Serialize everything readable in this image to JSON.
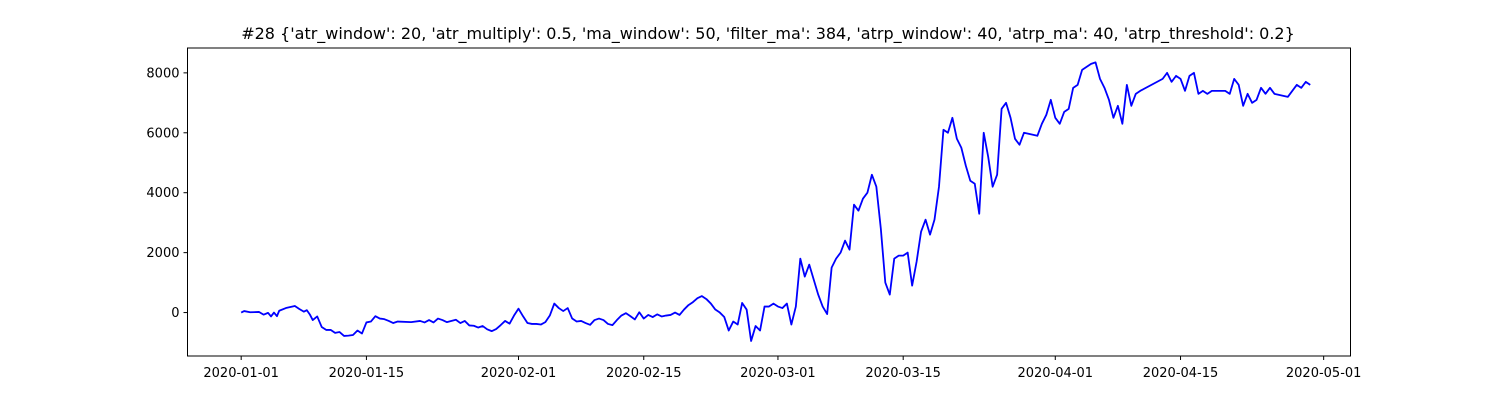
{
  "chart_data": {
    "type": "line",
    "title": "#28 {'atr_window': 20, 'atr_multiply': 0.5, 'ma_window': 50, 'filter_ma': 384, 'atrp_window': 40, 'atrp_ma': 40, 'atrp_threshold': 0.2}",
    "xlabel": "",
    "ylabel": "",
    "xlim": [
      "2019-12-26",
      "2020-05-04"
    ],
    "ylim": [
      -1450,
      8830
    ],
    "x_ticks": [
      "2020-01-01",
      "2020-01-15",
      "2020-02-01",
      "2020-02-15",
      "2020-03-01",
      "2020-03-15",
      "2020-04-01",
      "2020-04-15",
      "2020-05-01"
    ],
    "y_ticks": [
      0,
      2000,
      4000,
      6000,
      8000
    ],
    "grid": false,
    "series": [
      {
        "name": "",
        "color": "#0000ff",
        "points": [
          [
            "2020-01-01T00:00",
            0
          ],
          [
            "2020-01-01T08:00",
            50
          ],
          [
            "2020-01-02",
            10
          ],
          [
            "2020-01-03",
            20
          ],
          [
            "2020-01-03T12:00",
            -70
          ],
          [
            "2020-01-04",
            -10
          ],
          [
            "2020-01-04T08:00",
            -130
          ],
          [
            "2020-01-04T16:00",
            0
          ],
          [
            "2020-01-05T00:00",
            -120
          ],
          [
            "2020-01-05T06:00",
            60
          ],
          [
            "2020-01-06",
            150
          ],
          [
            "2020-01-07",
            220
          ],
          [
            "2020-01-07T12:00",
            120
          ],
          [
            "2020-01-08",
            30
          ],
          [
            "2020-01-08T08:00",
            80
          ],
          [
            "2020-01-08T16:00",
            -60
          ],
          [
            "2020-01-09",
            -250
          ],
          [
            "2020-01-09T12:00",
            -130
          ],
          [
            "2020-01-10",
            -480
          ],
          [
            "2020-01-10T12:00",
            -580
          ],
          [
            "2020-01-11",
            -580
          ],
          [
            "2020-01-11T12:00",
            -680
          ],
          [
            "2020-01-12",
            -650
          ],
          [
            "2020-01-12T12:00",
            -780
          ],
          [
            "2020-01-13",
            -770
          ],
          [
            "2020-01-13T12:00",
            -750
          ],
          [
            "2020-01-14",
            -600
          ],
          [
            "2020-01-14T12:00",
            -700
          ],
          [
            "2020-01-15",
            -330
          ],
          [
            "2020-01-15T12:00",
            -300
          ],
          [
            "2020-01-16",
            -120
          ],
          [
            "2020-01-16T12:00",
            -200
          ],
          [
            "2020-01-17",
            -220
          ],
          [
            "2020-01-17T12:00",
            -280
          ],
          [
            "2020-01-18",
            -350
          ],
          [
            "2020-01-18T12:00",
            -300
          ],
          [
            "2020-01-20",
            -320
          ],
          [
            "2020-01-21",
            -280
          ],
          [
            "2020-01-21T12:00",
            -330
          ],
          [
            "2020-01-22",
            -250
          ],
          [
            "2020-01-22T12:00",
            -330
          ],
          [
            "2020-01-23",
            -200
          ],
          [
            "2020-01-23T12:00",
            -250
          ],
          [
            "2020-01-24",
            -320
          ],
          [
            "2020-01-25",
            -240
          ],
          [
            "2020-01-25T12:00",
            -350
          ],
          [
            "2020-01-26",
            -280
          ],
          [
            "2020-01-26T12:00",
            -430
          ],
          [
            "2020-01-27",
            -440
          ],
          [
            "2020-01-27T12:00",
            -500
          ],
          [
            "2020-01-28",
            -450
          ],
          [
            "2020-01-28T12:00",
            -560
          ],
          [
            "2020-01-29",
            -620
          ],
          [
            "2020-01-29T12:00",
            -550
          ],
          [
            "2020-01-30",
            -420
          ],
          [
            "2020-01-30T12:00",
            -280
          ],
          [
            "2020-01-31",
            -370
          ],
          [
            "2020-01-31T12:00",
            -100
          ],
          [
            "2020-02-01",
            130
          ],
          [
            "2020-02-01T12:00",
            -120
          ],
          [
            "2020-02-02",
            -350
          ],
          [
            "2020-02-02T12:00",
            -380
          ],
          [
            "2020-02-03",
            -380
          ],
          [
            "2020-02-03T12:00",
            -400
          ],
          [
            "2020-02-04",
            -320
          ],
          [
            "2020-02-04T12:00",
            -100
          ],
          [
            "2020-02-05",
            300
          ],
          [
            "2020-02-05T12:00",
            150
          ],
          [
            "2020-02-06",
            50
          ],
          [
            "2020-02-06T12:00",
            150
          ],
          [
            "2020-02-07",
            -200
          ],
          [
            "2020-02-07T12:00",
            -300
          ],
          [
            "2020-02-08",
            -280
          ],
          [
            "2020-02-08T12:00",
            -350
          ],
          [
            "2020-02-09",
            -410
          ],
          [
            "2020-02-09T12:00",
            -250
          ],
          [
            "2020-02-10",
            -200
          ],
          [
            "2020-02-10T12:00",
            -250
          ],
          [
            "2020-02-11",
            -380
          ],
          [
            "2020-02-11T12:00",
            -420
          ],
          [
            "2020-02-12",
            -250
          ],
          [
            "2020-02-12T12:00",
            -100
          ],
          [
            "2020-02-13",
            -20
          ],
          [
            "2020-02-13T12:00",
            -120
          ],
          [
            "2020-02-14",
            -230
          ],
          [
            "2020-02-14T12:00",
            10
          ],
          [
            "2020-02-15",
            -200
          ],
          [
            "2020-02-15T12:00",
            -80
          ],
          [
            "2020-02-16",
            -150
          ],
          [
            "2020-02-16T12:00",
            -60
          ],
          [
            "2020-02-17",
            -130
          ],
          [
            "2020-02-17T12:00",
            -100
          ],
          [
            "2020-02-18",
            -80
          ],
          [
            "2020-02-18T12:00",
            0
          ],
          [
            "2020-02-19",
            -80
          ],
          [
            "2020-02-19T12:00",
            100
          ],
          [
            "2020-02-20",
            250
          ],
          [
            "2020-02-20T12:00",
            350
          ],
          [
            "2020-02-21",
            480
          ],
          [
            "2020-02-21T12:00",
            550
          ],
          [
            "2020-02-22",
            450
          ],
          [
            "2020-02-22T12:00",
            300
          ],
          [
            "2020-02-23",
            100
          ],
          [
            "2020-02-23T12:00",
            0
          ],
          [
            "2020-02-24",
            -150
          ],
          [
            "2020-02-24T12:00",
            -600
          ],
          [
            "2020-02-25",
            -300
          ],
          [
            "2020-02-25T12:00",
            -400
          ],
          [
            "2020-02-26",
            320
          ],
          [
            "2020-02-26T12:00",
            100
          ],
          [
            "2020-02-27",
            -950
          ],
          [
            "2020-02-27T12:00",
            -450
          ],
          [
            "2020-02-28",
            -600
          ],
          [
            "2020-02-28T12:00",
            200
          ],
          [
            "2020-02-29",
            200
          ],
          [
            "2020-02-29T12:00",
            300
          ],
          [
            "2020-03-01",
            200
          ],
          [
            "2020-03-01T12:00",
            150
          ],
          [
            "2020-03-02",
            300
          ],
          [
            "2020-03-02T12:00",
            -400
          ],
          [
            "2020-03-03",
            200
          ],
          [
            "2020-03-03T12:00",
            1800
          ],
          [
            "2020-03-04",
            1200
          ],
          [
            "2020-03-04T12:00",
            1600
          ],
          [
            "2020-03-05",
            1100
          ],
          [
            "2020-03-05T12:00",
            600
          ],
          [
            "2020-03-06",
            200
          ],
          [
            "2020-03-06T12:00",
            -50
          ],
          [
            "2020-03-07",
            1500
          ],
          [
            "2020-03-07T12:00",
            1800
          ],
          [
            "2020-03-08",
            2000
          ],
          [
            "2020-03-08T12:00",
            2400
          ],
          [
            "2020-03-09",
            2100
          ],
          [
            "2020-03-09T12:00",
            3600
          ],
          [
            "2020-03-10",
            3400
          ],
          [
            "2020-03-10T12:00",
            3800
          ],
          [
            "2020-03-11",
            4000
          ],
          [
            "2020-03-11T12:00",
            4600
          ],
          [
            "2020-03-12",
            4200
          ],
          [
            "2020-03-12T12:00",
            2800
          ],
          [
            "2020-03-13",
            1000
          ],
          [
            "2020-03-13T12:00",
            600
          ],
          [
            "2020-03-14",
            1800
          ],
          [
            "2020-03-14T12:00",
            1900
          ],
          [
            "2020-03-15",
            1900
          ],
          [
            "2020-03-15T12:00",
            2000
          ],
          [
            "2020-03-16",
            900
          ],
          [
            "2020-03-16T12:00",
            1700
          ],
          [
            "2020-03-17",
            2700
          ],
          [
            "2020-03-17T12:00",
            3100
          ],
          [
            "2020-03-18",
            2600
          ],
          [
            "2020-03-18T12:00",
            3100
          ],
          [
            "2020-03-19",
            4200
          ],
          [
            "2020-03-19T12:00",
            6100
          ],
          [
            "2020-03-20",
            6000
          ],
          [
            "2020-03-20T12:00",
            6500
          ],
          [
            "2020-03-21",
            5800
          ],
          [
            "2020-03-21T12:00",
            5500
          ],
          [
            "2020-03-22",
            4900
          ],
          [
            "2020-03-22T12:00",
            4400
          ],
          [
            "2020-03-23",
            4300
          ],
          [
            "2020-03-23T12:00",
            3300
          ],
          [
            "2020-03-24",
            6000
          ],
          [
            "2020-03-24T12:00",
            5200
          ],
          [
            "2020-03-25",
            4200
          ],
          [
            "2020-03-25T12:00",
            4600
          ],
          [
            "2020-03-26",
            6800
          ],
          [
            "2020-03-26T12:00",
            7000
          ],
          [
            "2020-03-27",
            6500
          ],
          [
            "2020-03-27T12:00",
            5800
          ],
          [
            "2020-03-28",
            5600
          ],
          [
            "2020-03-28T12:00",
            6000
          ],
          [
            "2020-03-30",
            5900
          ],
          [
            "2020-03-30T12:00",
            6300
          ],
          [
            "2020-03-31",
            6600
          ],
          [
            "2020-03-31T12:00",
            7100
          ],
          [
            "2020-04-01",
            6500
          ],
          [
            "2020-04-01T12:00",
            6300
          ],
          [
            "2020-04-02",
            6700
          ],
          [
            "2020-04-02T12:00",
            6800
          ],
          [
            "2020-04-03",
            7500
          ],
          [
            "2020-04-03T12:00",
            7600
          ],
          [
            "2020-04-04",
            8100
          ],
          [
            "2020-04-04T12:00",
            8200
          ],
          [
            "2020-04-05",
            8300
          ],
          [
            "2020-04-05T12:00",
            8350
          ],
          [
            "2020-04-06",
            7800
          ],
          [
            "2020-04-06T12:00",
            7500
          ],
          [
            "2020-04-07",
            7100
          ],
          [
            "2020-04-07T12:00",
            6500
          ],
          [
            "2020-04-08",
            6900
          ],
          [
            "2020-04-08T12:00",
            6300
          ],
          [
            "2020-04-09",
            7600
          ],
          [
            "2020-04-09T12:00",
            6900
          ],
          [
            "2020-04-10",
            7300
          ],
          [
            "2020-04-10T12:00",
            7400
          ],
          [
            "2020-04-13",
            7800
          ],
          [
            "2020-04-13T12:00",
            8000
          ],
          [
            "2020-04-14",
            7700
          ],
          [
            "2020-04-14T12:00",
            7900
          ],
          [
            "2020-04-15",
            7800
          ],
          [
            "2020-04-15T12:00",
            7400
          ],
          [
            "2020-04-16",
            7900
          ],
          [
            "2020-04-16T12:00",
            8000
          ],
          [
            "2020-04-17",
            7300
          ],
          [
            "2020-04-17T12:00",
            7400
          ],
          [
            "2020-04-18",
            7300
          ],
          [
            "2020-04-18T12:00",
            7400
          ],
          [
            "2020-04-20",
            7400
          ],
          [
            "2020-04-20T12:00",
            7300
          ],
          [
            "2020-04-21",
            7800
          ],
          [
            "2020-04-21T12:00",
            7600
          ],
          [
            "2020-04-22",
            6900
          ],
          [
            "2020-04-22T12:00",
            7300
          ],
          [
            "2020-04-23",
            7000
          ],
          [
            "2020-04-23T12:00",
            7100
          ],
          [
            "2020-04-24",
            7500
          ],
          [
            "2020-04-24T12:00",
            7300
          ],
          [
            "2020-04-25",
            7500
          ],
          [
            "2020-04-25T12:00",
            7300
          ],
          [
            "2020-04-27",
            7200
          ],
          [
            "2020-04-27T12:00",
            7400
          ],
          [
            "2020-04-28",
            7600
          ],
          [
            "2020-04-28T12:00",
            7500
          ],
          [
            "2020-04-29",
            7700
          ],
          [
            "2020-04-29T12:00",
            7600
          ]
        ]
      }
    ]
  }
}
